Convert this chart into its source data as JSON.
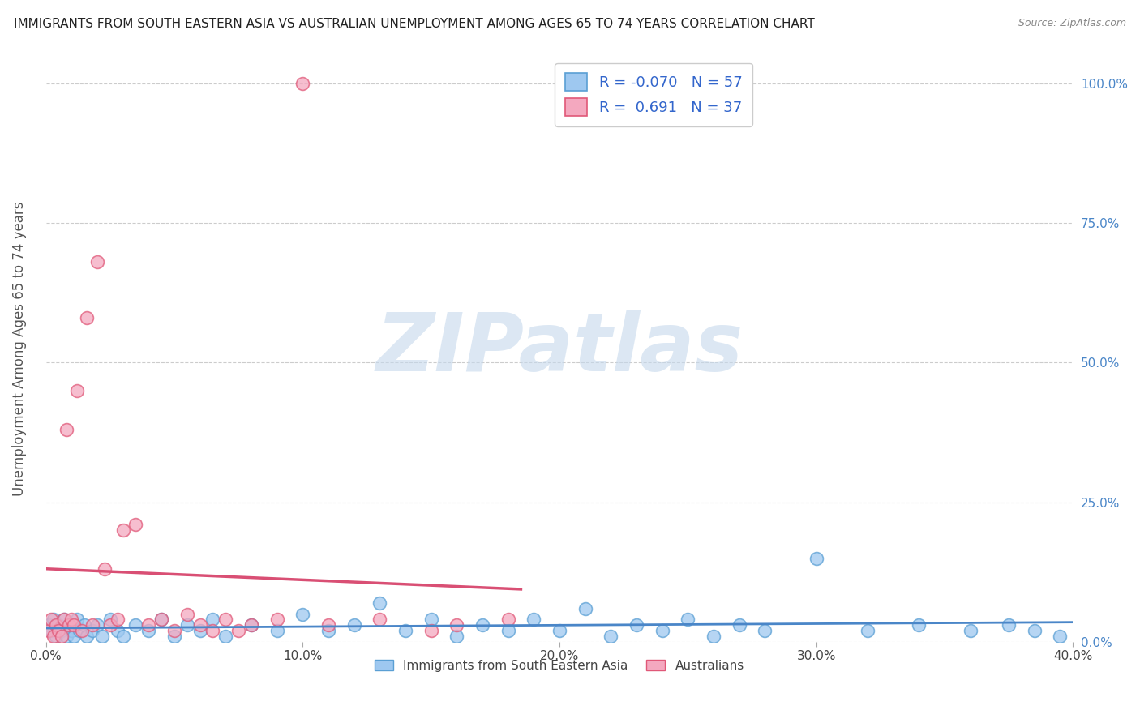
{
  "title": "IMMIGRANTS FROM SOUTH EASTERN ASIA VS AUSTRALIAN UNEMPLOYMENT AMONG AGES 65 TO 74 YEARS CORRELATION CHART",
  "source": "Source: ZipAtlas.com",
  "ylabel": "Unemployment Among Ages 65 to 74 years",
  "xlabel_vals": [
    0.0,
    10.0,
    20.0,
    30.0,
    40.0
  ],
  "xlim": [
    0.0,
    40.0
  ],
  "ylim": [
    0.0,
    1.05
  ],
  "blue_R": -0.07,
  "blue_N": 57,
  "pink_R": 0.691,
  "pink_N": 37,
  "legend_label_blue": "Immigrants from South Eastern Asia",
  "legend_label_pink": "Australians",
  "blue_color": "#9ec8f0",
  "pink_color": "#f4a8bf",
  "blue_edge_color": "#5a9fd4",
  "pink_edge_color": "#e05878",
  "blue_line_color": "#4a86c8",
  "pink_line_color": "#d94f74",
  "watermark": "ZIPatlas",
  "watermark_color": "#c5d8ec",
  "blue_scatter_x": [
    0.1,
    0.2,
    0.3,
    0.4,
    0.5,
    0.6,
    0.7,
    0.8,
    0.9,
    1.0,
    1.1,
    1.2,
    1.3,
    1.5,
    1.6,
    1.8,
    2.0,
    2.2,
    2.5,
    2.8,
    3.0,
    3.5,
    4.0,
    4.5,
    5.0,
    5.5,
    6.0,
    6.5,
    7.0,
    8.0,
    9.0,
    10.0,
    11.0,
    12.0,
    13.0,
    14.0,
    15.0,
    16.0,
    17.0,
    18.0,
    19.0,
    20.0,
    21.0,
    22.0,
    23.0,
    24.0,
    25.0,
    26.0,
    27.0,
    28.0,
    30.0,
    32.0,
    34.0,
    36.0,
    37.5,
    38.5,
    39.5
  ],
  "blue_scatter_y": [
    0.03,
    0.02,
    0.04,
    0.01,
    0.03,
    0.02,
    0.04,
    0.01,
    0.03,
    0.02,
    0.01,
    0.04,
    0.02,
    0.03,
    0.01,
    0.02,
    0.03,
    0.01,
    0.04,
    0.02,
    0.01,
    0.03,
    0.02,
    0.04,
    0.01,
    0.03,
    0.02,
    0.04,
    0.01,
    0.03,
    0.02,
    0.05,
    0.02,
    0.03,
    0.07,
    0.02,
    0.04,
    0.01,
    0.03,
    0.02,
    0.04,
    0.02,
    0.06,
    0.01,
    0.03,
    0.02,
    0.04,
    0.01,
    0.03,
    0.02,
    0.15,
    0.02,
    0.03,
    0.02,
    0.03,
    0.02,
    0.01
  ],
  "pink_scatter_x": [
    0.1,
    0.2,
    0.3,
    0.4,
    0.5,
    0.6,
    0.7,
    0.8,
    0.9,
    1.0,
    1.1,
    1.2,
    1.4,
    1.6,
    1.8,
    2.0,
    2.3,
    2.5,
    2.8,
    3.0,
    3.5,
    4.0,
    4.5,
    5.0,
    5.5,
    6.0,
    6.5,
    7.0,
    7.5,
    8.0,
    9.0,
    10.0,
    11.0,
    13.0,
    15.0,
    16.0,
    18.0
  ],
  "pink_scatter_y": [
    0.02,
    0.04,
    0.01,
    0.03,
    0.02,
    0.01,
    0.04,
    0.38,
    0.03,
    0.04,
    0.03,
    0.45,
    0.02,
    0.58,
    0.03,
    0.68,
    0.13,
    0.03,
    0.04,
    0.2,
    0.21,
    0.03,
    0.04,
    0.02,
    0.05,
    0.03,
    0.02,
    0.04,
    0.02,
    0.03,
    0.04,
    1.0,
    0.03,
    0.04,
    0.02,
    0.03,
    0.04
  ]
}
